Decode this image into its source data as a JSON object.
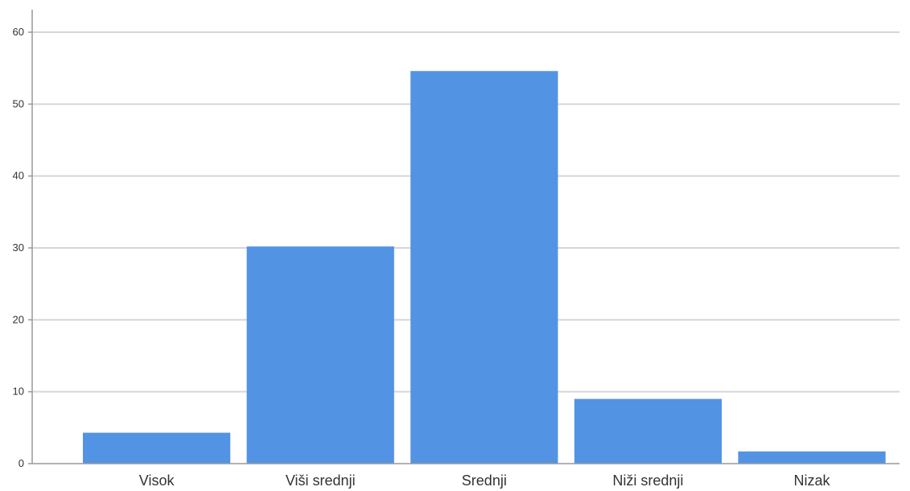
{
  "chart_data": {
    "type": "bar",
    "categories": [
      "Visok",
      "Viši srednji",
      "Srednji",
      "Niži srednji",
      "Nizak"
    ],
    "values": [
      4.3,
      30.2,
      54.6,
      9.0,
      1.7
    ],
    "yticks": [
      "0",
      "10",
      "20",
      "30",
      "40",
      "50",
      "60"
    ],
    "ylim": [
      0,
      60
    ],
    "grid": true,
    "title": "",
    "xlabel": "",
    "ylabel": "",
    "colors": {
      "bar": "#5393e3",
      "grid": "#d6d6d6",
      "axis": "#999999",
      "text": "#333333"
    }
  }
}
